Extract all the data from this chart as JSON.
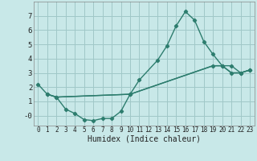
{
  "line1_x": [
    0,
    1,
    2,
    10,
    11,
    13,
    14,
    15,
    16,
    17,
    18,
    19,
    20,
    21,
    22,
    23
  ],
  "line1_y": [
    2.2,
    1.5,
    1.3,
    1.5,
    2.5,
    3.9,
    4.9,
    6.3,
    7.3,
    6.7,
    5.2,
    4.3,
    3.5,
    3.5,
    3.0,
    3.2
  ],
  "line2_x": [
    1,
    2,
    3,
    4,
    5,
    6,
    7,
    8,
    9,
    10,
    19,
    20,
    21,
    22,
    23
  ],
  "line2_y": [
    1.5,
    1.3,
    0.45,
    0.15,
    -0.28,
    -0.35,
    -0.2,
    -0.2,
    0.3,
    1.5,
    3.5,
    3.5,
    3.0,
    3.0,
    3.2
  ],
  "line3_x": [
    1,
    2,
    10,
    19,
    20,
    21,
    22,
    23
  ],
  "line3_y": [
    1.5,
    1.3,
    1.5,
    3.5,
    3.5,
    3.0,
    3.0,
    3.2
  ],
  "color": "#2d7d6e",
  "bg_color": "#c8e8e8",
  "grid_color": "#a0c8c8",
  "xlabel": "Humidex (Indice chaleur)",
  "xlim": [
    -0.5,
    23.5
  ],
  "ylim": [
    -0.7,
    8.0
  ],
  "yticks": [
    0,
    1,
    2,
    3,
    4,
    5,
    6,
    7
  ],
  "ytick_labels": [
    "-0",
    "1",
    "2",
    "3",
    "4",
    "5",
    "6",
    "7"
  ],
  "xticks": [
    0,
    1,
    2,
    3,
    4,
    5,
    6,
    7,
    8,
    9,
    10,
    11,
    12,
    13,
    14,
    15,
    16,
    17,
    18,
    19,
    20,
    21,
    22,
    23
  ]
}
